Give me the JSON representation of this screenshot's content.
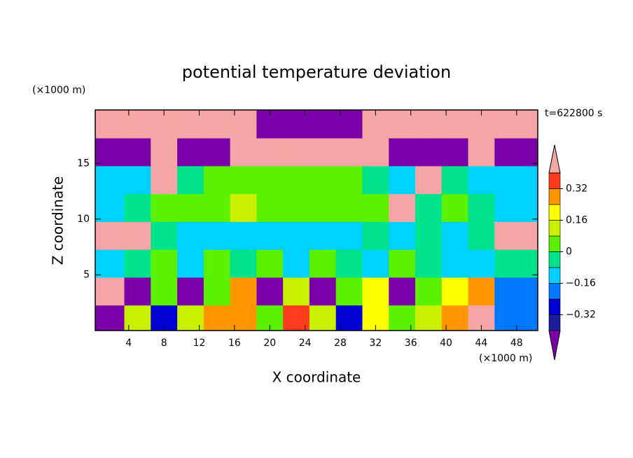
{
  "chart_data": {
    "type": "contour",
    "title": "potential temperature deviation",
    "xlabel": "X coordinate",
    "ylabel": "Z coordinate",
    "x_unit": "(×1000 m)",
    "y_unit": "(×1000 m)",
    "annotation": "t=622800 s",
    "xlim": [
      0.2,
      50.4
    ],
    "ylim": [
      0,
      19.8
    ],
    "xticks": [
      4,
      8,
      12,
      16,
      20,
      24,
      28,
      32,
      36,
      40,
      44,
      48
    ],
    "yticks": [
      5,
      10,
      15
    ],
    "levels": [
      -0.4,
      -0.32,
      -0.24,
      -0.16,
      -0.08,
      0,
      0.08,
      0.16,
      0.24,
      0.32,
      0.4
    ],
    "colors": [
      "#7a00a8",
      "#1c1c9e",
      "#0000d2",
      "#0078ff",
      "#00d2ff",
      "#00e38c",
      "#5af000",
      "#c8f000",
      "#ffff00",
      "#ff9600",
      "#ff3c1e",
      "#f5a5a5"
    ],
    "colorbar_ticks": [
      {
        "value": -0.32,
        "label": "−0.32"
      },
      {
        "value": -0.16,
        "label": "−0.16"
      },
      0,
      0.16,
      0.32
    ],
    "field": {
      "x": [
        2,
        5,
        8,
        11,
        14,
        17,
        20,
        23,
        26,
        29,
        32,
        35,
        38,
        41,
        44,
        47
      ],
      "z": [
        18.5,
        16,
        13.5,
        11,
        8.5,
        6,
        3.5,
        1
      ],
      "values": [
        [
          0.5,
          0.5,
          0.5,
          0.5,
          0.5,
          0.5,
          -0.5,
          -0.5,
          -0.5,
          -0.5,
          0.5,
          0.5,
          0.5,
          0.5,
          0.5,
          0.5
        ],
        [
          -0.5,
          -0.5,
          0.5,
          -0.5,
          -0.5,
          0.5,
          0.5,
          0.5,
          0.5,
          0.5,
          0.5,
          -0.5,
          -0.5,
          -0.5,
          0.5,
          -0.5
        ],
        [
          -0.12,
          -0.1,
          0.45,
          -0.05,
          0.02,
          0.04,
          0.05,
          0.04,
          0.02,
          0.04,
          -0.05,
          -0.1,
          0.45,
          -0.05,
          -0.1,
          -0.12
        ],
        [
          -0.1,
          -0.05,
          0.04,
          0.05,
          0.06,
          0.1,
          0.06,
          0.05,
          0.06,
          0.04,
          0.02,
          0.45,
          -0.05,
          0.02,
          -0.05,
          -0.1
        ],
        [
          0.45,
          0.45,
          -0.05,
          -0.1,
          -0.1,
          -0.12,
          -0.1,
          -0.12,
          -0.1,
          -0.12,
          -0.05,
          -0.1,
          -0.05,
          -0.1,
          -0.05,
          0.45
        ],
        [
          -0.1,
          -0.05,
          0.02,
          -0.1,
          0.04,
          -0.05,
          0.02,
          -0.12,
          0.02,
          -0.05,
          -0.1,
          0.02,
          -0.05,
          -0.1,
          -0.12,
          -0.05
        ],
        [
          0.45,
          -0.5,
          0.04,
          -0.5,
          0.02,
          0.3,
          -0.5,
          0.1,
          -0.5,
          0.05,
          0.2,
          -0.45,
          0.02,
          0.2,
          0.3,
          -0.2
        ],
        [
          -0.45,
          0.1,
          -0.3,
          0.1,
          0.25,
          0.3,
          0.05,
          0.35,
          0.1,
          -0.3,
          0.2,
          0.02,
          0.1,
          0.3,
          0.45,
          -0.2
        ]
      ]
    }
  }
}
